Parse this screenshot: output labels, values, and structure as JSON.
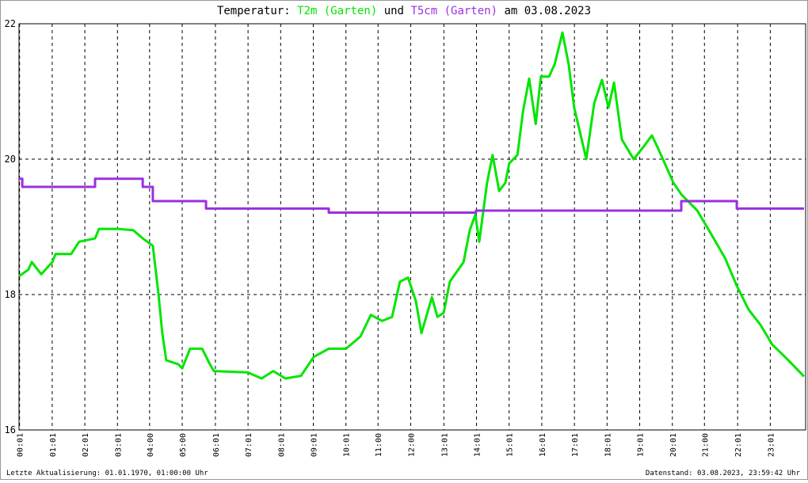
{
  "chart_data": {
    "type": "line",
    "title": "Temperatur:",
    "title_joiner": "und",
    "title_date": "am 03.08.2023",
    "footer_left": "Letzte Aktualisierung: 01.01.1970, 01:00:00 Uhr",
    "footer_right": "Datenstand: 03.08.2023, 23:59:42 Uhr",
    "xlim": [
      0,
      24.1
    ],
    "ylim": [
      16,
      22
    ],
    "yticks": [
      16,
      18,
      20,
      22
    ],
    "xticks": [
      {
        "value": 0.0167,
        "label": "00:01"
      },
      {
        "value": 1.0167,
        "label": "01:01"
      },
      {
        "value": 2.0167,
        "label": "02:01"
      },
      {
        "value": 3.0167,
        "label": "03:01"
      },
      {
        "value": 4.0,
        "label": "04:00"
      },
      {
        "value": 5.0,
        "label": "05:00"
      },
      {
        "value": 6.0167,
        "label": "06:01"
      },
      {
        "value": 7.0167,
        "label": "07:01"
      },
      {
        "value": 8.0167,
        "label": "08:01"
      },
      {
        "value": 9.0167,
        "label": "09:01"
      },
      {
        "value": 10.0167,
        "label": "10:01"
      },
      {
        "value": 11.0,
        "label": "11:00"
      },
      {
        "value": 12.0,
        "label": "12:00"
      },
      {
        "value": 13.0167,
        "label": "13:01"
      },
      {
        "value": 14.0167,
        "label": "14:01"
      },
      {
        "value": 15.0167,
        "label": "15:01"
      },
      {
        "value": 16.0167,
        "label": "16:01"
      },
      {
        "value": 17.0167,
        "label": "17:01"
      },
      {
        "value": 18.0167,
        "label": "18:01"
      },
      {
        "value": 19.0167,
        "label": "19:01"
      },
      {
        "value": 20.0167,
        "label": "20:01"
      },
      {
        "value": 21.0,
        "label": "21:00"
      },
      {
        "value": 22.0167,
        "label": "22:01"
      },
      {
        "value": 23.0167,
        "label": "23:01"
      }
    ],
    "grid": true,
    "series": [
      {
        "name": "T2m (Garten)",
        "color": "#00e600",
        "x": [
          0,
          0.29,
          0.39,
          0.68,
          1.02,
          1.12,
          1.6,
          1.84,
          2.33,
          2.45,
          3.01,
          3.5,
          3.79,
          4.1,
          4.27,
          4.39,
          4.51,
          4.88,
          5.0,
          5.24,
          5.61,
          5.85,
          5.97,
          7.01,
          7.43,
          7.79,
          8.16,
          8.64,
          9.03,
          9.49,
          10.02,
          10.46,
          10.78,
          11.12,
          11.43,
          11.67,
          11.92,
          12.16,
          12.33,
          12.65,
          12.82,
          13.01,
          13.2,
          13.62,
          13.81,
          13.98,
          14.1,
          14.34,
          14.51,
          14.71,
          14.9,
          15.02,
          15.27,
          15.44,
          15.63,
          15.83,
          15.99,
          16.24,
          16.41,
          16.65,
          16.84,
          17.01,
          17.38,
          17.62,
          17.86,
          18.06,
          18.23,
          18.47,
          18.83,
          19.13,
          19.39,
          19.56,
          20.05,
          20.29,
          20.78,
          21.21,
          21.63,
          21.99,
          22.35,
          22.72,
          23.08,
          23.57,
          24.05
        ],
        "values": [
          18.27,
          18.37,
          18.48,
          18.3,
          18.48,
          18.6,
          18.6,
          18.78,
          18.83,
          18.97,
          18.97,
          18.95,
          18.83,
          18.72,
          18.02,
          17.43,
          17.03,
          16.97,
          16.91,
          17.2,
          17.2,
          16.97,
          16.87,
          16.85,
          16.76,
          16.87,
          16.76,
          16.8,
          17.08,
          17.2,
          17.2,
          17.38,
          17.7,
          17.61,
          17.67,
          18.19,
          18.25,
          17.9,
          17.43,
          17.96,
          17.67,
          17.73,
          18.19,
          18.48,
          18.95,
          19.18,
          18.78,
          19.65,
          20.06,
          19.53,
          19.65,
          19.94,
          20.06,
          20.7,
          21.19,
          20.52,
          21.22,
          21.22,
          21.4,
          21.87,
          21.4,
          20.76,
          20.0,
          20.82,
          21.17,
          20.76,
          21.13,
          20.29,
          20.0,
          20.18,
          20.35,
          20.18,
          19.65,
          19.48,
          19.24,
          18.89,
          18.54,
          18.13,
          17.78,
          17.55,
          17.26,
          17.03,
          16.79
        ]
      },
      {
        "name": "T5cm (Garten)",
        "color": "#9a30e0",
        "x": [
          0,
          0.1,
          0.1,
          2.33,
          2.33,
          3.79,
          3.79,
          4.1,
          4.1,
          5.73,
          5.73,
          9.49,
          9.49,
          14.0,
          14.0,
          20.29,
          20.29,
          21.99,
          21.99,
          24.05
        ],
        "values": [
          19.71,
          19.71,
          19.59,
          19.59,
          19.71,
          19.71,
          19.59,
          19.59,
          19.38,
          19.38,
          19.27,
          19.27,
          19.21,
          19.21,
          19.24,
          19.24,
          19.38,
          19.38,
          19.27,
          19.27
        ]
      }
    ]
  }
}
